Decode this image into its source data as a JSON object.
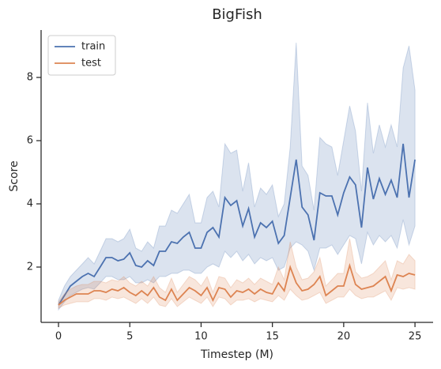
{
  "chart_data": {
    "type": "line",
    "title": "BigFish",
    "x_label": "Timestep (M)",
    "y_label": "Score",
    "x": [
      0,
      0.42,
      0.83,
      1.25,
      1.67,
      2.08,
      2.5,
      2.92,
      3.33,
      3.75,
      4.17,
      4.58,
      5,
      5.42,
      5.83,
      6.25,
      6.67,
      7.08,
      7.5,
      7.92,
      8.33,
      8.75,
      9.17,
      9.58,
      10,
      10.42,
      10.83,
      11.25,
      11.67,
      12.08,
      12.5,
      12.92,
      13.33,
      13.75,
      14.17,
      14.58,
      15,
      15.42,
      15.83,
      16.25,
      16.67,
      17.08,
      17.5,
      17.92,
      18.33,
      18.75,
      19.17,
      19.58,
      20,
      20.42,
      20.83,
      21.25,
      21.67,
      22.08,
      22.5,
      22.92,
      23.33,
      23.75,
      24.17,
      24.58,
      25
    ],
    "series": [
      {
        "name": "train",
        "color": "#4c72b0",
        "values": [
          0.8,
          1.1,
          1.4,
          1.55,
          1.7,
          1.8,
          1.7,
          2.0,
          2.3,
          2.3,
          2.2,
          2.25,
          2.45,
          2.05,
          2.0,
          2.2,
          2.05,
          2.5,
          2.5,
          2.8,
          2.75,
          2.95,
          3.1,
          2.6,
          2.6,
          3.1,
          3.25,
          2.95,
          4.2,
          3.95,
          4.1,
          3.3,
          3.85,
          2.95,
          3.4,
          3.25,
          3.45,
          2.75,
          3.0,
          4.2,
          5.4,
          3.9,
          3.65,
          2.85,
          4.35,
          4.25,
          4.25,
          3.65,
          4.35,
          4.85,
          4.6,
          3.25,
          5.15,
          4.15,
          4.8,
          4.3,
          4.75,
          4.2,
          5.9,
          4.2,
          5.4
        ],
        "lower": [
          0.65,
          0.9,
          1.1,
          1.2,
          1.3,
          1.35,
          1.3,
          1.5,
          1.7,
          1.7,
          1.6,
          1.6,
          1.7,
          1.5,
          1.5,
          1.6,
          1.5,
          1.7,
          1.7,
          1.8,
          1.8,
          1.9,
          1.9,
          1.8,
          1.8,
          2.0,
          2.1,
          2.0,
          2.5,
          2.3,
          2.5,
          2.2,
          2.4,
          2.1,
          2.3,
          2.2,
          2.3,
          1.9,
          2.0,
          2.6,
          2.8,
          2.7,
          2.5,
          1.9,
          2.6,
          2.6,
          2.7,
          2.4,
          2.7,
          3.0,
          2.9,
          2.1,
          3.1,
          2.7,
          3.0,
          2.8,
          3.0,
          2.6,
          3.5,
          2.7,
          3.3
        ],
        "upper": [
          0.95,
          1.4,
          1.7,
          1.9,
          2.1,
          2.3,
          2.1,
          2.5,
          2.9,
          2.9,
          2.8,
          2.9,
          3.2,
          2.6,
          2.5,
          2.8,
          2.6,
          3.3,
          3.3,
          3.8,
          3.7,
          4.0,
          4.3,
          3.4,
          3.4,
          4.2,
          4.4,
          3.9,
          5.9,
          5.6,
          5.7,
          4.4,
          5.3,
          3.9,
          4.5,
          4.3,
          4.6,
          3.6,
          4.0,
          5.8,
          9.1,
          5.2,
          4.9,
          3.8,
          6.1,
          5.9,
          5.8,
          4.9,
          6.0,
          7.1,
          6.3,
          4.4,
          7.2,
          5.6,
          6.5,
          5.8,
          6.5,
          5.8,
          8.3,
          9.0,
          7.6
        ]
      },
      {
        "name": "test",
        "color": "#dd8452",
        "values": [
          0.8,
          0.95,
          1.05,
          1.15,
          1.15,
          1.15,
          1.25,
          1.25,
          1.2,
          1.3,
          1.25,
          1.35,
          1.2,
          1.1,
          1.25,
          1.1,
          1.35,
          1.05,
          0.95,
          1.3,
          0.95,
          1.15,
          1.35,
          1.25,
          1.1,
          1.35,
          0.95,
          1.35,
          1.3,
          1.05,
          1.25,
          1.2,
          1.3,
          1.15,
          1.3,
          1.2,
          1.15,
          1.5,
          1.25,
          2.0,
          1.5,
          1.25,
          1.3,
          1.45,
          1.7,
          1.1,
          1.25,
          1.4,
          1.4,
          2.05,
          1.45,
          1.3,
          1.35,
          1.4,
          1.55,
          1.7,
          1.25,
          1.75,
          1.7,
          1.8,
          1.75
        ],
        "lower": [
          0.7,
          0.8,
          0.85,
          0.9,
          0.9,
          0.9,
          1.0,
          1.0,
          0.95,
          1.05,
          1.0,
          1.05,
          0.95,
          0.85,
          1.0,
          0.85,
          1.05,
          0.8,
          0.75,
          1.0,
          0.75,
          0.9,
          1.05,
          0.95,
          0.85,
          1.05,
          0.75,
          1.05,
          1.0,
          0.8,
          0.95,
          0.95,
          1.0,
          0.9,
          1.0,
          0.95,
          0.9,
          1.1,
          0.95,
          1.3,
          1.1,
          0.95,
          1.0,
          1.1,
          1.2,
          0.85,
          0.95,
          1.05,
          1.05,
          1.3,
          1.1,
          1.0,
          1.05,
          1.05,
          1.15,
          1.25,
          0.95,
          1.35,
          1.3,
          1.35,
          1.3
        ],
        "upper": [
          0.9,
          1.15,
          1.3,
          1.4,
          1.45,
          1.45,
          1.55,
          1.55,
          1.5,
          1.6,
          1.55,
          1.7,
          1.5,
          1.4,
          1.55,
          1.4,
          1.7,
          1.35,
          1.2,
          1.65,
          1.2,
          1.45,
          1.7,
          1.6,
          1.4,
          1.7,
          1.2,
          1.7,
          1.65,
          1.35,
          1.6,
          1.5,
          1.65,
          1.45,
          1.65,
          1.55,
          1.45,
          2.0,
          1.6,
          2.8,
          2.0,
          1.6,
          1.65,
          1.85,
          2.3,
          1.4,
          1.6,
          1.8,
          1.8,
          2.9,
          1.85,
          1.65,
          1.7,
          1.8,
          2.0,
          2.2,
          1.6,
          2.2,
          2.1,
          2.4,
          2.2
        ]
      }
    ],
    "xlim": [
      -1.22,
      26.27
    ],
    "ylim": [
      0.25,
      9.5
    ],
    "xticks": [
      0,
      5,
      10,
      15,
      20,
      25
    ],
    "yticks": [
      2,
      4,
      6,
      8
    ],
    "legend": "upper left",
    "grid": false
  }
}
